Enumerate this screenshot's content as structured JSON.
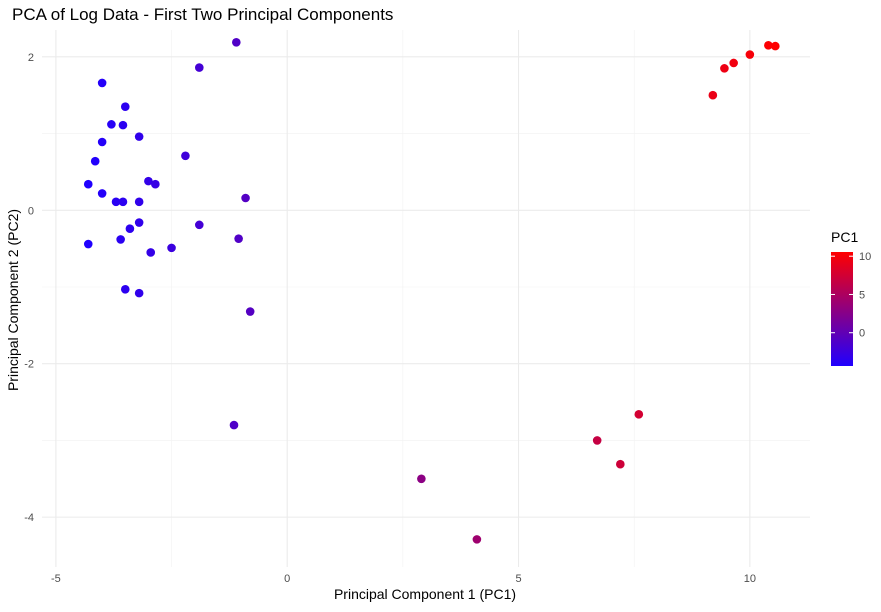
{
  "chart_data": {
    "type": "scatter",
    "title": "PCA of Log Data - First Two Principal Components",
    "xlabel": "Principal Component 1 (PC1)",
    "ylabel": "Principal Component 2 (PC2)",
    "xlim": [
      -5.3,
      11.3
    ],
    "ylim": [
      -4.65,
      2.35
    ],
    "x_ticks": [
      -5,
      0,
      5,
      10
    ],
    "x_tick_labels": [
      "-5",
      "0",
      "5",
      "10"
    ],
    "y_ticks": [
      -4,
      -2,
      0,
      2
    ],
    "y_tick_labels": [
      "-4",
      "-2",
      "0",
      "2"
    ],
    "grid": true,
    "color_scale": {
      "title": "PC1",
      "low_color": "#1f00ff",
      "high_color": "#ff0000",
      "min": -4.35,
      "max": 10.55,
      "ticks": [
        0,
        5,
        10
      ],
      "tick_labels": [
        "0",
        "5",
        "10"
      ],
      "placement": "right"
    },
    "points": [
      {
        "x": -4.0,
        "y": 1.66
      },
      {
        "x": -1.1,
        "y": 2.19
      },
      {
        "x": -1.9,
        "y": 1.86
      },
      {
        "x": -3.5,
        "y": 1.35
      },
      {
        "x": -3.8,
        "y": 1.12
      },
      {
        "x": -3.55,
        "y": 1.11
      },
      {
        "x": -3.2,
        "y": 0.96
      },
      {
        "x": -4.0,
        "y": 0.89
      },
      {
        "x": -2.2,
        "y": 0.71
      },
      {
        "x": -4.15,
        "y": 0.64
      },
      {
        "x": -3.0,
        "y": 0.38
      },
      {
        "x": -2.85,
        "y": 0.34
      },
      {
        "x": -4.3,
        "y": 0.34
      },
      {
        "x": -4.0,
        "y": 0.22
      },
      {
        "x": -0.9,
        "y": 0.16
      },
      {
        "x": -3.7,
        "y": 0.11
      },
      {
        "x": -3.55,
        "y": 0.11
      },
      {
        "x": -3.2,
        "y": 0.11
      },
      {
        "x": -3.2,
        "y": -0.16
      },
      {
        "x": -1.9,
        "y": -0.19
      },
      {
        "x": -3.4,
        "y": -0.24
      },
      {
        "x": -3.6,
        "y": -0.38
      },
      {
        "x": -1.05,
        "y": -0.37
      },
      {
        "x": -4.3,
        "y": -0.44
      },
      {
        "x": -2.5,
        "y": -0.49
      },
      {
        "x": -2.95,
        "y": -0.55
      },
      {
        "x": -3.5,
        "y": -1.03
      },
      {
        "x": -3.2,
        "y": -1.08
      },
      {
        "x": -0.8,
        "y": -1.32
      },
      {
        "x": -1.15,
        "y": -2.8
      },
      {
        "x": 2.9,
        "y": -3.5
      },
      {
        "x": 4.1,
        "y": -4.29
      },
      {
        "x": 6.7,
        "y": -3.0
      },
      {
        "x": 7.2,
        "y": -3.31
      },
      {
        "x": 7.6,
        "y": -2.66
      },
      {
        "x": 9.2,
        "y": 1.5
      },
      {
        "x": 9.45,
        "y": 1.85
      },
      {
        "x": 9.65,
        "y": 1.92
      },
      {
        "x": 10.0,
        "y": 2.03
      },
      {
        "x": 10.4,
        "y": 2.15
      },
      {
        "x": 10.55,
        "y": 2.14
      }
    ]
  }
}
